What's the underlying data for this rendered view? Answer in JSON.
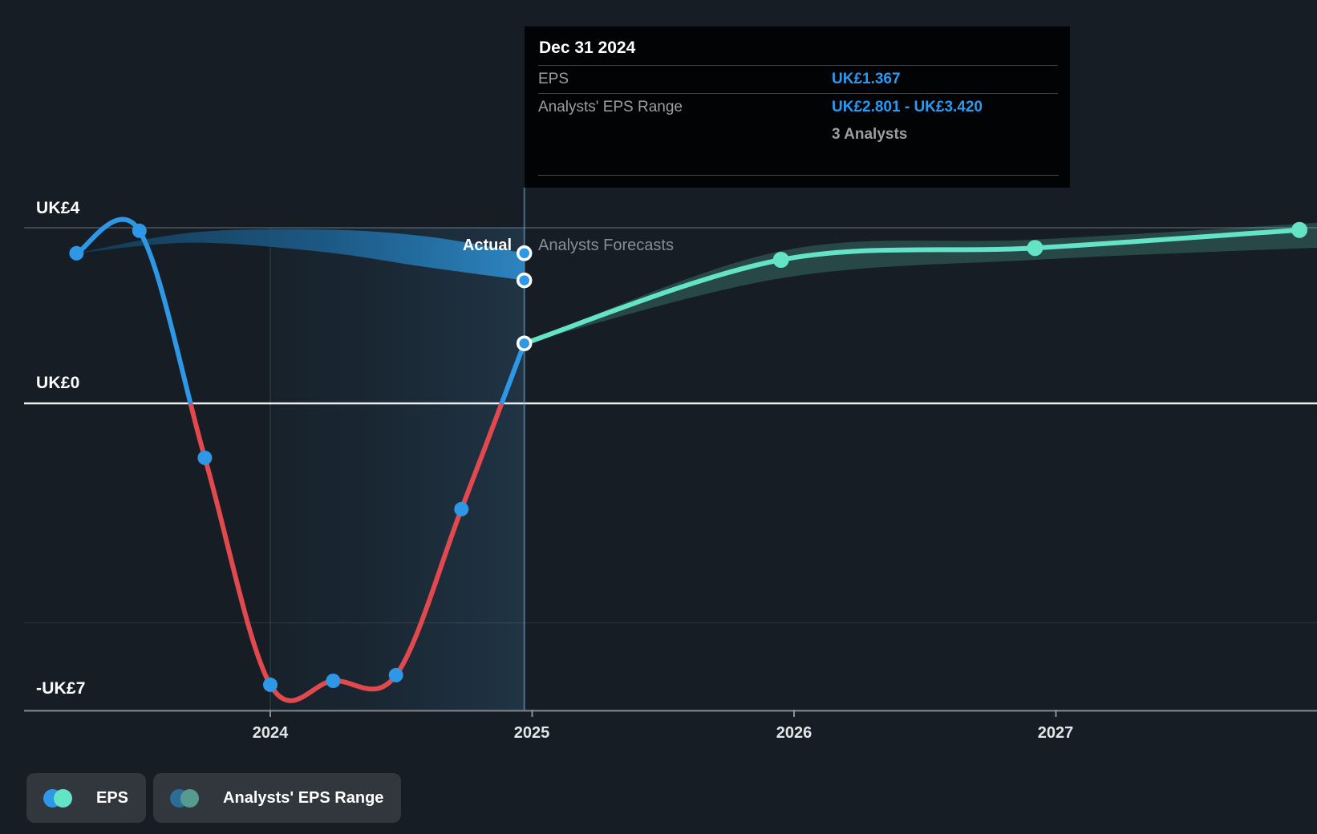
{
  "tooltip": {
    "date": "Dec 31 2024",
    "eps_label": "EPS",
    "eps_value": "UK£1.367",
    "range_label": "Analysts' EPS Range",
    "range_value": "UK£2.801 - UK£3.420",
    "analysts_note": "3 Analysts"
  },
  "phase_labels": {
    "actual": "Actual",
    "forecast": "Analysts Forecasts"
  },
  "y_axis": {
    "ticks": [
      {
        "label": "UK£4",
        "value": 4
      },
      {
        "label": "UK£0",
        "value": 0
      },
      {
        "label": "-UK£7",
        "value": -7
      }
    ]
  },
  "x_axis": {
    "ticks": [
      {
        "label": "2024",
        "t": 2024
      },
      {
        "label": "2025",
        "t": 2025
      },
      {
        "label": "2026",
        "t": 2026
      },
      {
        "label": "2027",
        "t": 2027
      }
    ]
  },
  "legend": {
    "eps": {
      "label": "EPS",
      "colors": [
        "#2e97e6",
        "#64e3c6"
      ]
    },
    "range": {
      "label": "Analysts' EPS Range",
      "colors": [
        "#2d6c96",
        "#579a92"
      ]
    }
  },
  "colors": {
    "background": "#161d24",
    "actual_positive_line": "#2e97e6",
    "actual_negative_line": "#e2494f",
    "forecast_line": "#64e3c6",
    "forecast_band_fill": "rgba(100,226,197,0.22)",
    "tooltip_value_text": "#2b9af0",
    "tooltip_bg": "#020304",
    "zero_line": "#eceef0"
  },
  "chart_data": {
    "type": "line",
    "title": "EPS: past performance and analysts' forecasts",
    "x_unit": "calendar year (decimal)",
    "xlim": [
      2023.08,
      2028.02
    ],
    "ylim": [
      -7.7,
      4.6
    ],
    "divider_t": 2024.97,
    "zero_line": 0,
    "gridlines": [
      4,
      0,
      -5,
      -7
    ],
    "highlight_span": {
      "from_t": 2024.0,
      "to_t": 2024.97
    },
    "series": [
      {
        "name": "EPS (actual)",
        "points": [
          [
            2023.26,
            3.42
          ],
          [
            2023.5,
            3.93
          ],
          [
            2023.75,
            -1.24
          ],
          [
            2024.0,
            -6.41
          ],
          [
            2024.24,
            -6.32
          ],
          [
            2024.48,
            -6.19
          ],
          [
            2024.73,
            -2.41
          ],
          [
            2024.97,
            1.367
          ]
        ]
      },
      {
        "name": "EPS (analysts forecast)",
        "points": [
          [
            2024.97,
            1.367
          ],
          [
            2025.95,
            3.27
          ],
          [
            2026.92,
            3.54
          ],
          [
            2027.93,
            3.95
          ]
        ]
      }
    ],
    "bands": [
      {
        "name": "Analysts' EPS Range (actual period)",
        "points": [
          {
            "t": 2023.26,
            "top": 3.42,
            "bottom": 3.42
          },
          {
            "t": 2023.7,
            "top": 3.89,
            "bottom": 3.66
          },
          {
            "t": 2024.2,
            "top": 3.96,
            "bottom": 3.45
          },
          {
            "t": 2024.6,
            "top": 3.8,
            "bottom": 3.1
          },
          {
            "t": 2024.97,
            "top": 3.42,
            "bottom": 2.801
          }
        ]
      },
      {
        "name": "Analysts' EPS Range (forecast)",
        "points": [
          {
            "t": 2024.97,
            "top": 1.367,
            "bottom": 1.367
          },
          {
            "t": 2025.95,
            "top": 3.47,
            "bottom": 2.85
          },
          {
            "t": 2026.92,
            "top": 3.73,
            "bottom": 3.27
          },
          {
            "t": 2028.02,
            "top": 4.12,
            "bottom": 3.55
          }
        ]
      }
    ],
    "ringed_markers": [
      {
        "t": 2024.97,
        "v": 3.42
      },
      {
        "t": 2024.97,
        "v": 2.801
      },
      {
        "t": 2024.97,
        "v": 1.367
      }
    ]
  }
}
